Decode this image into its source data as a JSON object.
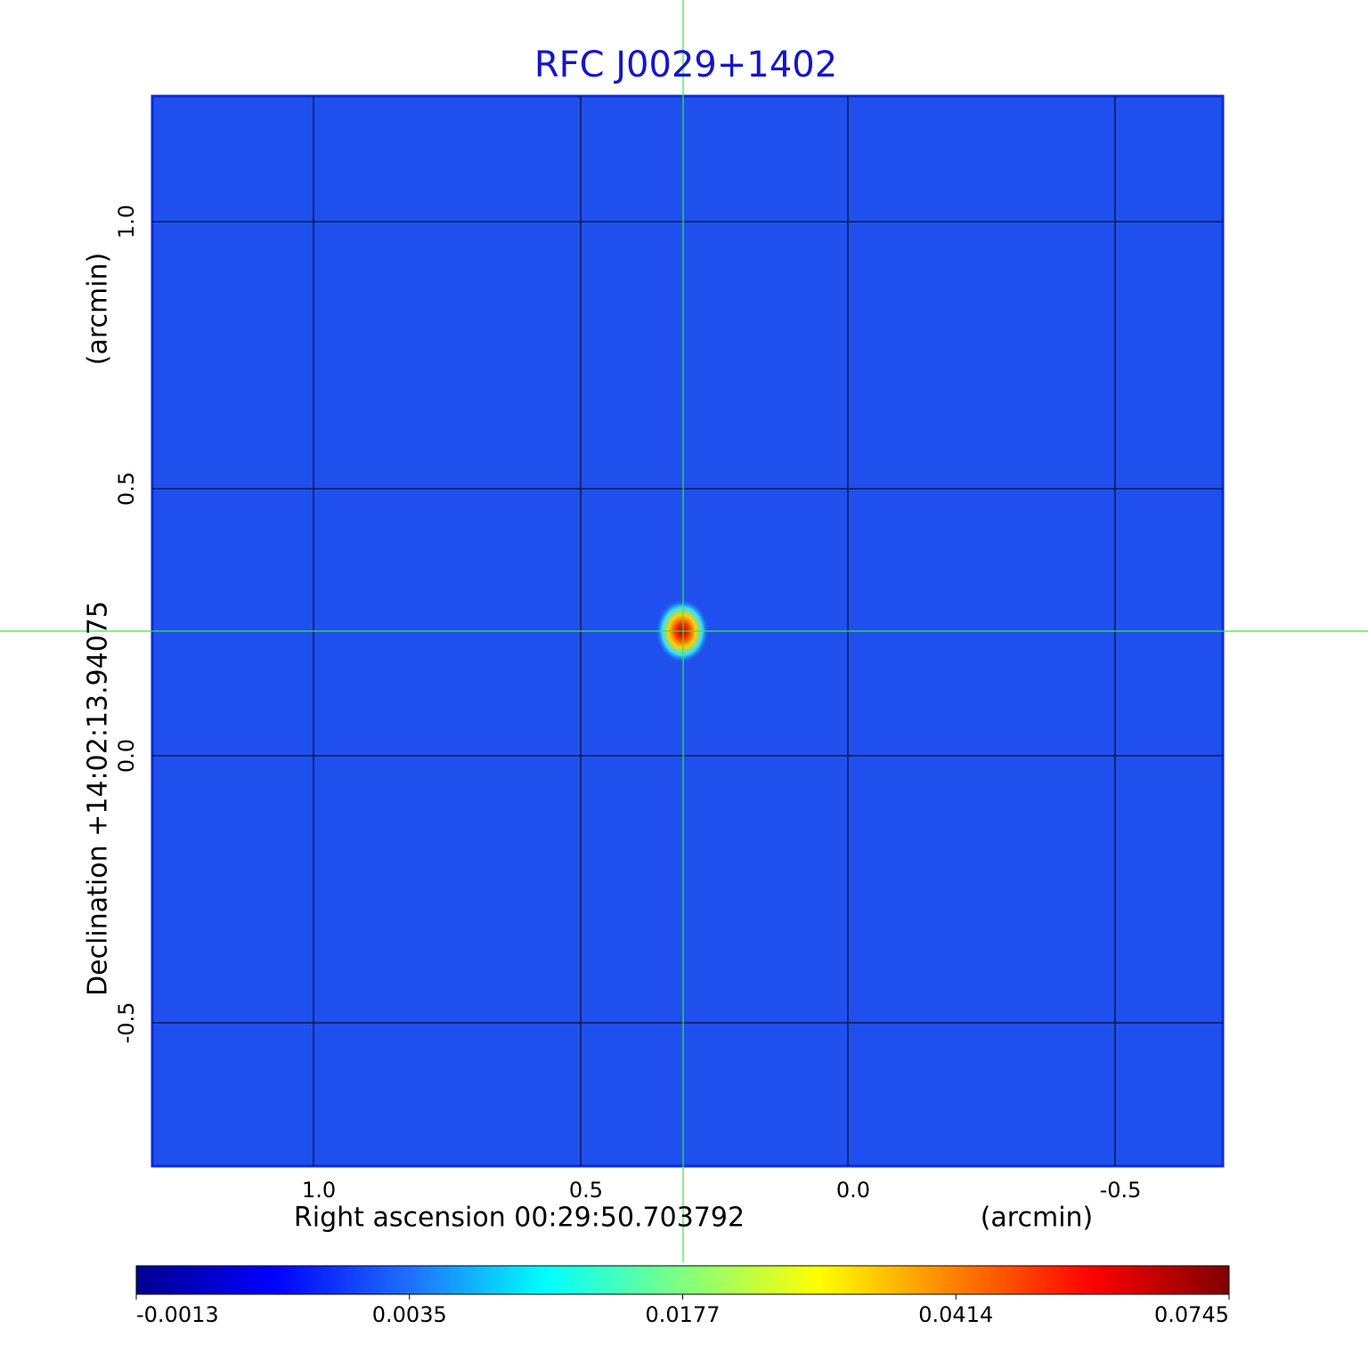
{
  "chart_data": {
    "type": "image",
    "title": "RFC J0029+1402",
    "x_label": "Right ascension  00:29:50.703792",
    "x_unit": "(arcmin)",
    "y_label": "Declination  +14:02:13.94075",
    "y_unit": "(arcmin)",
    "xlim": [
      1.3017,
      -0.7017
    ],
    "ylim": [
      -0.7683,
      1.235
    ],
    "xticks": [
      {
        "value": 1,
        "label": "1.0"
      },
      {
        "value": 0.5,
        "label": "0.5"
      },
      {
        "value": 0,
        "label": "0.0"
      },
      {
        "value": -0.5,
        "label": "-0.5"
      }
    ],
    "yticks": [
      {
        "value": 1,
        "label": "1.0"
      },
      {
        "value": 0.5,
        "label": "0.5"
      },
      {
        "value": 0,
        "label": "0.0"
      },
      {
        "value": -0.5,
        "label": "-0.5"
      }
    ],
    "grid": true,
    "background_color": "#1f50ee",
    "colormap": [
      "#00008f",
      "#0000ff",
      "#1f6fff",
      "#00ffff",
      "#80ff80",
      "#ffff00",
      "#ff8000",
      "#ff0000",
      "#800000"
    ],
    "colorbar_ticks": [
      -0.0013,
      0.0035,
      0.0177,
      0.0414,
      0.0745
    ]
  }
}
